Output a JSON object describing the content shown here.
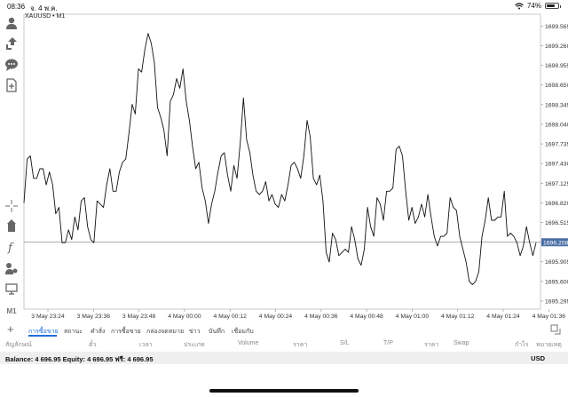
{
  "status_bar": {
    "time": "08:36",
    "date": "จ. 4 พ.ค.",
    "battery": "74%",
    "battery_level": 0.74
  },
  "symbol": "XAUUSD • M1",
  "sidebar_icons": [
    "account-icon",
    "trade-icon",
    "chat-icon",
    "new-document-icon",
    "crosshair-icon",
    "objects-icon",
    "indicators-icon",
    "charts-settings-icon",
    "bar-type-icon",
    "timeframe-icon"
  ],
  "timeframe_label": "M1",
  "chart_data": {
    "type": "line",
    "colors": {
      "line": "#111111",
      "grid": "#e6e6e6",
      "current_price_bg": "#4a6fa5"
    },
    "y_ticks": [
      "1699.565",
      "1699.260",
      "1698.955",
      "1698.650",
      "1698.345",
      "1698.040",
      "1697.735",
      "1697.430",
      "1697.125",
      "1696.820",
      "1696.515",
      "1696.210",
      "1695.905",
      "1695.600",
      "1695.295"
    ],
    "ylim": [
      1695.17,
      1699.75
    ],
    "current_price": "1696.208",
    "x_ticks": [
      "3 May 23:24",
      "3 May 23:36",
      "3 May 23:48",
      "4 May 00:00",
      "4 May 00:12",
      "4 May 00:24",
      "4 May 00:36",
      "4 May 00:48",
      "4 May 01:00",
      "4 May 01:12",
      "4 May 01:24",
      "4 May 01:36"
    ],
    "values": [
      1696.82,
      1697.5,
      1697.55,
      1697.2,
      1697.2,
      1697.35,
      1697.35,
      1697.1,
      1697.3,
      1697.1,
      1696.65,
      1696.75,
      1696.2,
      1696.2,
      1696.4,
      1696.25,
      1696.6,
      1696.4,
      1696.85,
      1696.9,
      1696.45,
      1696.25,
      1696.2,
      1696.85,
      1696.8,
      1696.75,
      1697.1,
      1697.35,
      1697.0,
      1697.0,
      1697.3,
      1697.45,
      1697.5,
      1697.9,
      1698.35,
      1698.2,
      1698.9,
      1698.85,
      1699.2,
      1699.45,
      1699.3,
      1699.0,
      1698.3,
      1698.15,
      1697.95,
      1697.55,
      1698.4,
      1698.5,
      1698.75,
      1698.6,
      1698.9,
      1698.4,
      1698.1,
      1697.7,
      1697.35,
      1697.45,
      1697.05,
      1696.85,
      1696.5,
      1696.8,
      1697.0,
      1697.3,
      1697.55,
      1697.6,
      1697.25,
      1697.0,
      1697.4,
      1697.2,
      1697.75,
      1698.45,
      1697.8,
      1697.6,
      1697.25,
      1697.0,
      1696.95,
      1697.0,
      1697.15,
      1696.85,
      1696.95,
      1696.8,
      1696.75,
      1696.95,
      1696.85,
      1697.1,
      1697.4,
      1697.45,
      1697.35,
      1697.2,
      1697.55,
      1698.1,
      1697.85,
      1697.2,
      1697.1,
      1697.25,
      1696.85,
      1696.05,
      1695.9,
      1696.35,
      1696.25,
      1696.0,
      1696.05,
      1696.1,
      1696.05,
      1696.45,
      1696.25,
      1695.95,
      1695.85,
      1696.1,
      1696.75,
      1696.45,
      1696.3,
      1696.9,
      1696.8,
      1696.55,
      1697.0,
      1697.0,
      1697.05,
      1697.65,
      1697.7,
      1697.55,
      1697.0,
      1696.55,
      1696.75,
      1696.5,
      1696.6,
      1696.8,
      1696.6,
      1696.95,
      1696.6,
      1696.3,
      1696.15,
      1696.3,
      1696.3,
      1696.35,
      1696.9,
      1696.75,
      1696.7,
      1696.3,
      1696.1,
      1695.9,
      1695.6,
      1695.55,
      1695.6,
      1695.75,
      1696.3,
      1696.55,
      1696.9,
      1696.55,
      1696.55,
      1696.6,
      1696.6,
      1697.0,
      1696.3,
      1696.35,
      1696.3,
      1696.2,
      1696.0,
      1696.15,
      1696.45,
      1696.2,
      1696.0,
      1696.2
    ]
  },
  "tabs": {
    "items": [
      "การซื้อขาย",
      "สถานะ",
      "คำสั่ง",
      "การซื้อขาย",
      "กล่องจดหมาย",
      "ข่าว",
      "บันทึก",
      "เชื่อมกับ"
    ],
    "active_index": 0
  },
  "columns": [
    "สัญลักษณ์",
    "ตั๋ว",
    "เวลา",
    "ประเภท",
    "Volume",
    "ราคา",
    "S/L",
    "T/P",
    "ราคา",
    "Swap",
    "กำไร",
    "หมายเหตุ"
  ],
  "balance": {
    "text": "Balance: 4 696.95 Equity: 4 696.95 ฟรี: 4 696.95",
    "currency": "USD"
  }
}
